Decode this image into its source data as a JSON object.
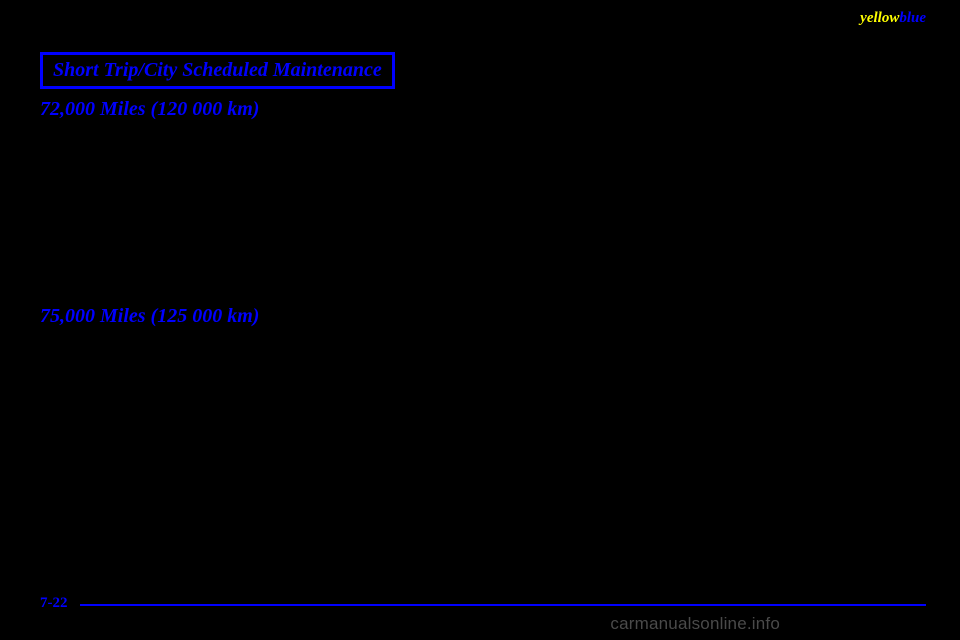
{
  "header": {
    "yellowWord": "yellow",
    "blueWord": "blue"
  },
  "titleBox": "Short Trip/City Scheduled Maintenance",
  "sections": [
    {
      "heading": "72,000 Miles (120 000 km)"
    },
    {
      "heading": "75,000 Miles (125 000 km)"
    }
  ],
  "pageNumber": "7-22",
  "watermark": "carmanualsonline.info",
  "colors": {
    "background": "#000000",
    "blue": "#0000ff",
    "yellow": "#ffff00",
    "watermark": "#4a4a4a"
  }
}
